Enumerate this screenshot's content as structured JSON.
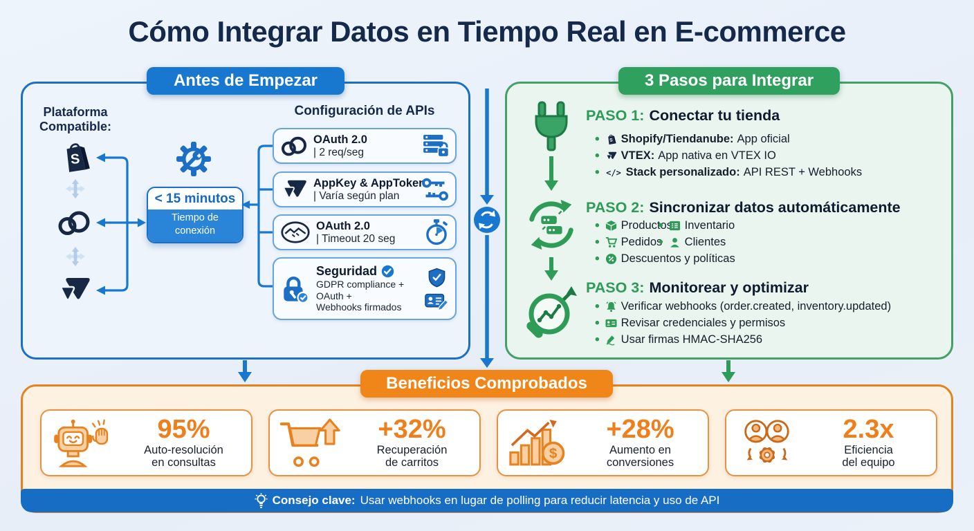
{
  "title": "Cómo Integrar Datos en Tiempo Real en E-commerce",
  "colors": {
    "blue": "#1878cf",
    "navy": "#1a2742",
    "green": "#2fa05e",
    "orange": "#f08519",
    "page_bg": "#e8eff7"
  },
  "before_panel": {
    "badge": "Antes de Empezar",
    "platform_label_line1": "Plataforma",
    "platform_label_line2": "Compatible:",
    "platform_icons": [
      "shopify-icon",
      "tiendanube-icon",
      "vtex-icon"
    ],
    "gear_icon": "gear-wrench-icon",
    "connection_box": {
      "value": "< 15 minutos",
      "label_line1": "Tiempo de",
      "label_line2": "conexión"
    },
    "api_config": {
      "heading": "Configuración de APIs",
      "rows": [
        {
          "icon": "tiendanube-icon",
          "title": "OAuth 2.0",
          "detail": "| 2 req/seg",
          "right_icon": "server-lock-icon"
        },
        {
          "icon": "vtex-icon",
          "title": "AppKey & AppToken",
          "detail": "| Varía según plan",
          "right_icon": "keys-icon"
        },
        {
          "icon": "handshake-icon",
          "title": "OAuth 2.0",
          "detail": "| Timeout 20 seg",
          "right_icon": "stopwatch-icon"
        }
      ],
      "security": {
        "icon": "lock-check-icon",
        "title": "Seguridad",
        "lines": [
          "GDPR compliance +",
          "OAuth +",
          "Webhooks firmados"
        ],
        "right_icons": [
          "shield-check-icon",
          "id-card-pen-icon"
        ]
      }
    }
  },
  "steps_panel": {
    "badge": "3 Pasos para Integrar",
    "steps": [
      {
        "label": "PASO 1:",
        "title": "Conectar tu tienda",
        "icon": "plug-icon",
        "bullets": [
          {
            "icon": "shopify-icon",
            "bold": "Shopify/Tiendanube:",
            "text": "App oficial"
          },
          {
            "icon": "vtex-icon",
            "bold": "VTEX:",
            "text": "App nativa en VTEX IO"
          },
          {
            "icon": "code-icon",
            "bold": "Stack personalizado:",
            "text": "API REST + Webhooks"
          }
        ]
      },
      {
        "label": "PASO 2:",
        "title": "Sincronizar datos automáticamente",
        "icon": "sync-icon",
        "col1": [
          {
            "icon": "package-icon",
            "text": "Productos"
          },
          {
            "icon": "cart-icon",
            "text": "Pedidos"
          },
          {
            "icon": "discount-icon",
            "text": "Descuentos y políticas"
          }
        ],
        "col2": [
          {
            "icon": "inventory-icon",
            "text": "Inventario"
          },
          {
            "icon": "customer-icon",
            "text": "Clientes"
          }
        ]
      },
      {
        "label": "PASO 3:",
        "title": "Monitorear y optimizar",
        "icon": "magnifier-chart-icon",
        "bullets": [
          {
            "icon": "bell-icon",
            "text": "Verificar webhooks (order.created, inventory.updated)"
          },
          {
            "icon": "credentials-icon",
            "text": "Revisar credenciales y permisos"
          },
          {
            "icon": "signature-icon",
            "text": "Usar firmas HMAC-SHA256"
          }
        ]
      }
    ]
  },
  "benefits_panel": {
    "badge": "Beneficios Comprobados",
    "cards": [
      {
        "icon": "robot-icon",
        "value": "95%",
        "label_line1": "Auto-resolución",
        "label_line2": "en consultas"
      },
      {
        "icon": "cart-up-icon",
        "value": "+32%",
        "label_line1": "Recuperación",
        "label_line2": "de carritos"
      },
      {
        "icon": "growth-dollar-icon",
        "value": "+28%",
        "label_line1": "Aumento en",
        "label_line2": "conversiones"
      },
      {
        "icon": "team-gear-icon",
        "value": "2.3x",
        "label_line1": "Eficiencia",
        "label_line2": "del equipo"
      }
    ],
    "tip": {
      "icon": "lightbulb-icon",
      "bold": "Consejo clave:",
      "text": "Usar webhooks en lugar de polling para reducir latencia y uso de API"
    }
  }
}
